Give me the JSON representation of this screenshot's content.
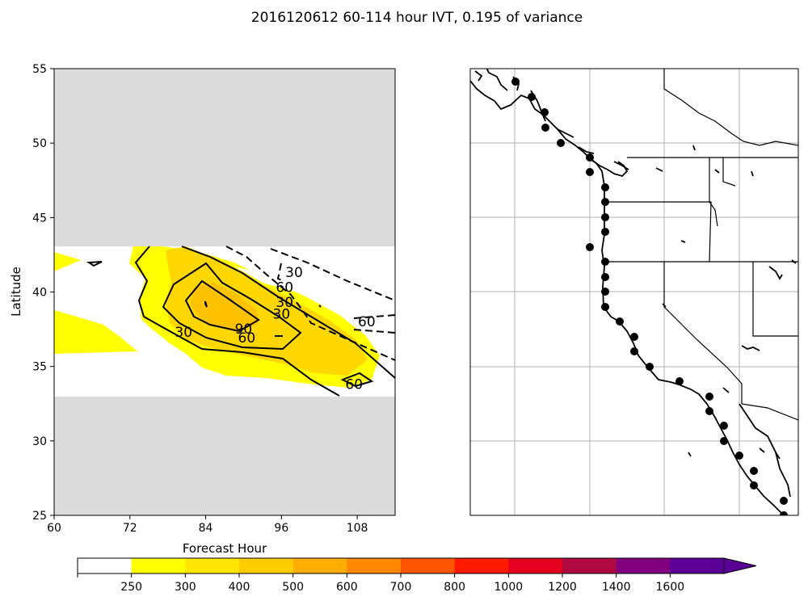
{
  "title": "2016120612 60-114 hour IVT, 0.195 of variance",
  "chart_data": [
    {
      "type": "contour",
      "xlabel": "Forecast Hour",
      "ylabel": "Latitude",
      "xlim": [
        60,
        114
      ],
      "ylim": [
        25,
        55
      ],
      "xticks": [
        60,
        72,
        84,
        96,
        108
      ],
      "yticks": [
        25,
        30,
        35,
        40,
        45,
        50,
        55
      ],
      "masked_region_color": "#dbdbdb",
      "valid_lat_range": [
        33,
        43
      ],
      "contour_labels": [
        {
          "text": "30",
          "x": 98,
          "y": 41.0
        },
        {
          "text": "60",
          "x": 96.5,
          "y": 40.0
        },
        {
          "text": "30",
          "x": 96.5,
          "y": 39.0
        },
        {
          "text": "30",
          "x": 96.0,
          "y": 38.2
        },
        {
          "text": "60",
          "x": 109.5,
          "y": 37.7
        },
        {
          "text": "30",
          "x": 80.5,
          "y": 37.0
        },
        {
          "text": "90",
          "x": 90.0,
          "y": 37.2
        },
        {
          "text": "60",
          "x": 90.5,
          "y": 36.6
        },
        {
          "text": "60",
          "x": 107.5,
          "y": 33.5
        }
      ]
    },
    {
      "type": "map",
      "region": "US West Coast",
      "marker_color": "#000000",
      "station_latitudes": [
        54,
        53,
        52,
        51,
        50,
        49,
        48,
        47,
        46,
        45,
        44,
        43,
        42,
        41,
        40,
        39,
        38,
        37,
        36,
        35,
        34,
        33,
        32,
        31,
        30,
        29,
        28,
        27,
        26,
        25
      ]
    }
  ],
  "colorbar": {
    "ticks": [
      "250",
      "300",
      "400",
      "500",
      "600",
      "700",
      "800",
      "1000",
      "1200",
      "1400",
      "1600"
    ],
    "colors": [
      "#ffffff",
      "#ffff00",
      "#ffe600",
      "#ffcc00",
      "#ffad00",
      "#ff8800",
      "#ff5500",
      "#ff1a00",
      "#e60020",
      "#b00840",
      "#800080",
      "#5a0096"
    ]
  }
}
